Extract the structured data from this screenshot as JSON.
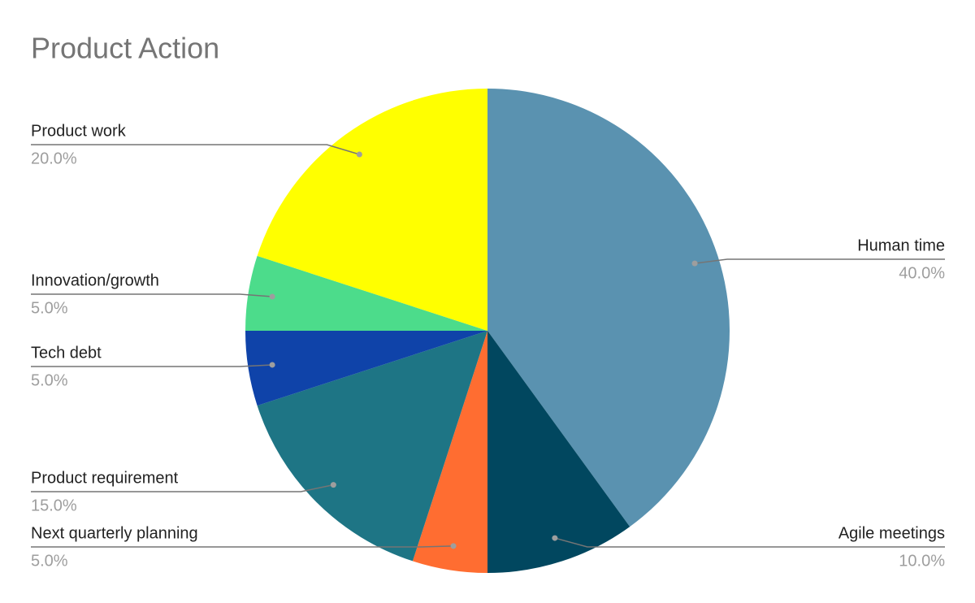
{
  "chart_data": {
    "type": "pie",
    "title": "Product Action",
    "categories": [
      "Human time",
      "Agile meetings",
      "Next quarterly planning",
      "Product requirement",
      "Tech debt",
      "Innovation/growth",
      "Product work"
    ],
    "values": [
      40,
      10,
      5,
      15,
      5,
      5,
      20
    ],
    "value_labels": [
      "40.0%",
      "10.0%",
      "5.0%",
      "15.0%",
      "5.0%",
      "5.0%",
      "20.0%"
    ],
    "colors": [
      "#5a92b0",
      "#01475f",
      "#ff6d31",
      "#1e7585",
      "#0f43a9",
      "#4cdc8b",
      "#ffff00"
    ]
  }
}
